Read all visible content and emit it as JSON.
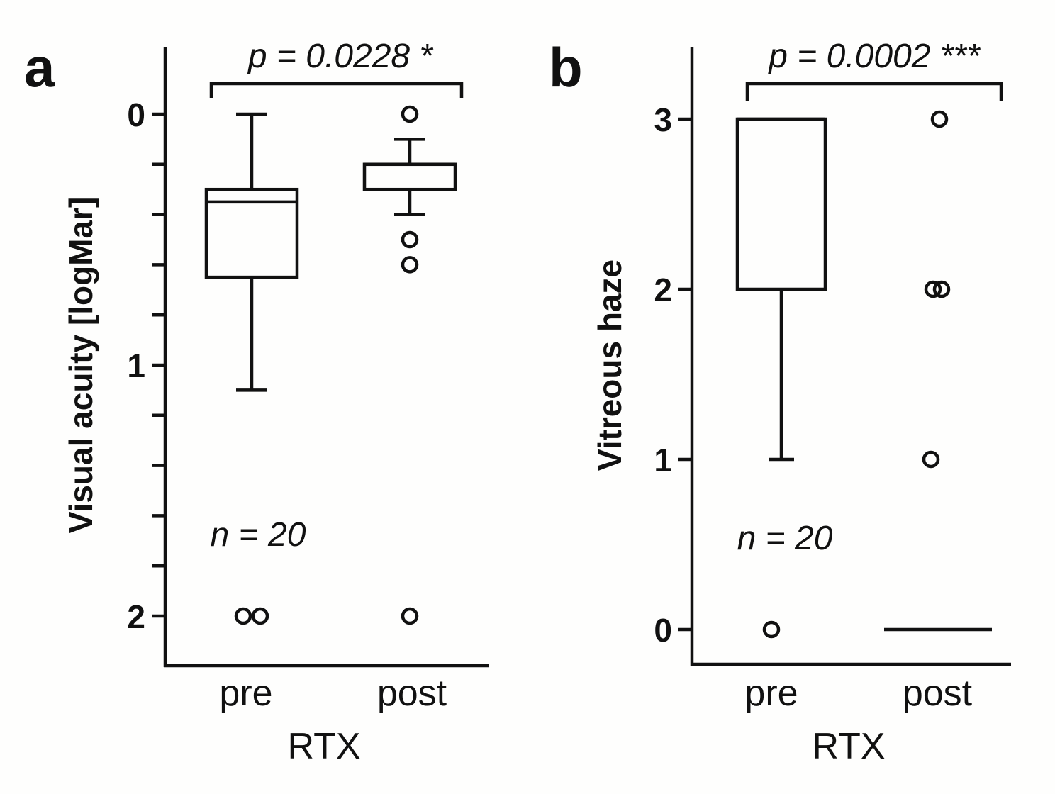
{
  "chart_data": [
    {
      "type": "box",
      "panel_label": "a",
      "ylabel": "Visual acuity [logMar]",
      "xlabel": "RTX",
      "categories": [
        "pre",
        "post"
      ],
      "y_inverted": true,
      "ylim": [
        -0.2,
        2.2
      ],
      "yticks_major": [
        0,
        1,
        2
      ],
      "yticks_major_labels": [
        "0",
        "1",
        "2"
      ],
      "yticks_minor": [
        0.2,
        0.4,
        0.6,
        0.8,
        1.2,
        1.4,
        1.6,
        1.8
      ],
      "boxes": [
        {
          "category": "pre",
          "whisker_low": 0,
          "q1": 0.3,
          "median": 0.35,
          "q3": 0.65,
          "whisker_high": 1.1,
          "outliers": [
            2.0,
            2.0
          ]
        },
        {
          "category": "post",
          "whisker_low": 0.1,
          "q1": 0.2,
          "median": 0.2,
          "q3": 0.3,
          "whisker_high": 0.4,
          "outliers": [
            0.0,
            0.5,
            0.6,
            2.0
          ]
        }
      ],
      "significance": "p = 0.0228 *",
      "annotation": "n = 20"
    },
    {
      "type": "box",
      "panel_label": "b",
      "ylabel": "Vitreous haze",
      "xlabel": "RTX",
      "categories": [
        "pre",
        "post"
      ],
      "y_inverted": false,
      "ylim": [
        -0.2,
        3.4
      ],
      "yticks_major": [
        0,
        1,
        2,
        3
      ],
      "yticks_major_labels": [
        "0",
        "1",
        "2",
        "3"
      ],
      "yticks_minor": [],
      "boxes": [
        {
          "category": "pre",
          "whisker_low": 1,
          "q1": 2,
          "median": 3,
          "q3": 3,
          "whisker_high": 3,
          "outliers": [
            0
          ]
        },
        {
          "category": "post",
          "whisker_low": 0,
          "q1": 0,
          "median": 0,
          "q3": 0,
          "whisker_high": 0,
          "outliers": [
            1,
            2,
            2,
            3
          ]
        }
      ],
      "significance": "p = 0.0002 ***",
      "annotation": "n = 20"
    }
  ]
}
